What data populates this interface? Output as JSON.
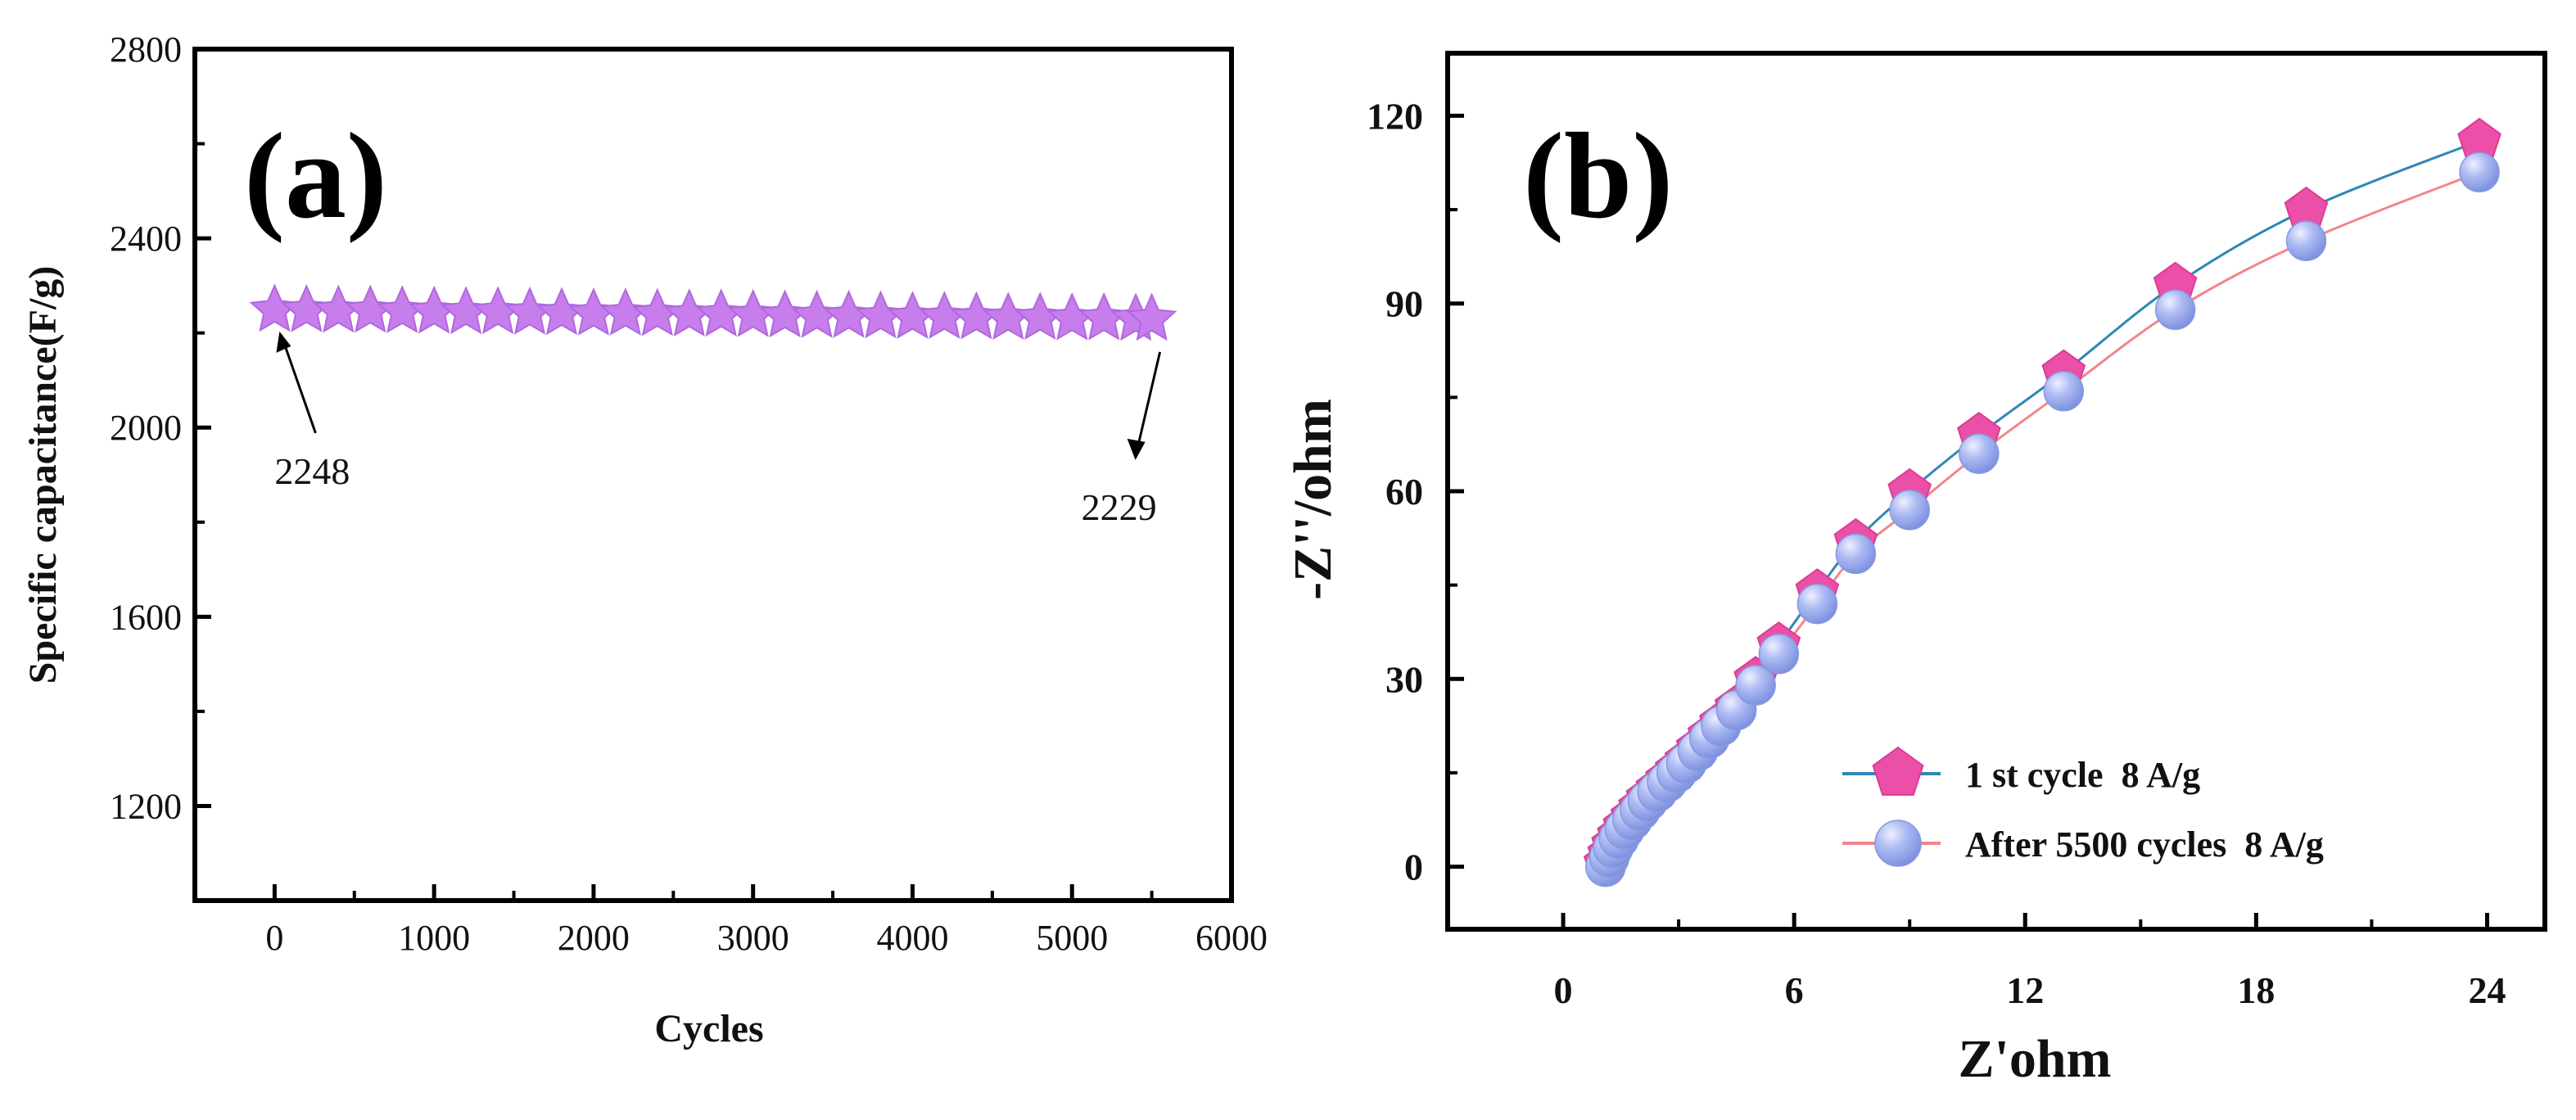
{
  "colors": {
    "star": "#c77dec",
    "star_stroke": "#b068dc",
    "pentagon": "#ec4fa8",
    "line_first": "#2f87b4",
    "line_after": "#f2868b",
    "sphere": "#9eaef0",
    "sphere_highlight": "#eef0ff",
    "axis": "#000000"
  },
  "chart_data": [
    {
      "type": "scatter",
      "panel": "(a)",
      "title": "",
      "xlabel": "Cycles",
      "ylabel": "Specific capacitance(F/g)",
      "xlim": [
        -500,
        6000
      ],
      "ylim": [
        1000,
        2800
      ],
      "xticks": [
        "0",
        "1000",
        "2000",
        "3000",
        "4000",
        "5000",
        "6000"
      ],
      "yticks": [
        "1200",
        "1600",
        "2000",
        "2400",
        "2800"
      ],
      "marker": "star-icon",
      "series": [
        {
          "name": "Specific capacitance",
          "x": [
            0,
            200,
            400,
            600,
            800,
            1000,
            1200,
            1400,
            1600,
            1800,
            2000,
            2200,
            2400,
            2600,
            2800,
            3000,
            3200,
            3400,
            3600,
            3800,
            4000,
            4200,
            4400,
            4600,
            4800,
            5000,
            5200,
            5400,
            5500
          ],
          "y": [
            2248,
            2247,
            2246,
            2246,
            2245,
            2244,
            2243,
            2243,
            2242,
            2241,
            2240,
            2240,
            2239,
            2238,
            2238,
            2237,
            2236,
            2235,
            2235,
            2234,
            2233,
            2233,
            2232,
            2231,
            2231,
            2230,
            2230,
            2229,
            2229
          ]
        }
      ],
      "annotations": [
        {
          "text": "2248",
          "points_to": [
            0,
            2248
          ]
        },
        {
          "text": "2229",
          "points_to": [
            5500,
            2229
          ]
        }
      ]
    },
    {
      "type": "line",
      "panel": "(b)",
      "title": "",
      "xlabel": "Z'ohm",
      "ylabel": "-Z''/ohm",
      "xlim": [
        -3,
        25.5
      ],
      "ylim": [
        -10,
        130
      ],
      "xticks": [
        "0",
        "6",
        "12",
        "18",
        "24"
      ],
      "yticks": [
        "0",
        "30",
        "60",
        "90",
        "120"
      ],
      "legend_position": "lower-right",
      "series": [
        {
          "name": "1 st cycle  8 A/g",
          "marker": "pentagon-icon",
          "x": [
            1.1,
            1.2,
            1.3,
            1.45,
            1.6,
            1.8,
            2.0,
            2.2,
            2.45,
            2.7,
            2.95,
            3.2,
            3.5,
            3.8,
            4.1,
            4.5,
            5.0,
            5.6,
            6.6,
            7.6,
            9.0,
            10.8,
            13.0,
            15.9,
            19.3,
            23.8
          ],
          "y": [
            0.5,
            2,
            3.5,
            5,
            6.5,
            8,
            9.5,
            11,
            12.5,
            14,
            15.5,
            17,
            19,
            21,
            23,
            25.5,
            30,
            35.5,
            44,
            52,
            60,
            69,
            79,
            93,
            105,
            116
          ]
        },
        {
          "name": "After 5500 cycles  8 A/g",
          "marker": "sphere-icon",
          "x": [
            1.1,
            1.2,
            1.3,
            1.45,
            1.6,
            1.8,
            2.0,
            2.2,
            2.45,
            2.7,
            2.95,
            3.2,
            3.5,
            3.8,
            4.1,
            4.5,
            5.0,
            5.6,
            6.6,
            7.6,
            9.0,
            10.8,
            13.0,
            15.9,
            19.3,
            23.8
          ],
          "y": [
            0,
            1.5,
            3,
            4.5,
            6,
            7.5,
            9,
            10.5,
            12,
            13.5,
            15,
            16.5,
            18.5,
            20.5,
            22.5,
            25,
            29,
            34,
            42,
            50,
            57,
            66,
            76,
            89,
            100,
            111
          ]
        }
      ]
    }
  ]
}
